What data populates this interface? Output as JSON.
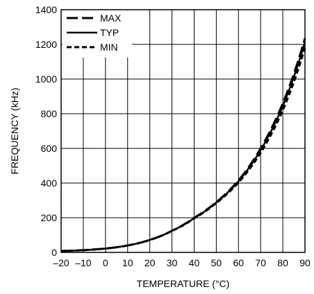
{
  "chart_data": {
    "type": "line",
    "title": "",
    "xlabel": "TEMPERATURE (°C)",
    "ylabel": "FREQUENCY (kHz)",
    "xlim": [
      -20,
      90
    ],
    "ylim": [
      0,
      1400
    ],
    "xticks": [
      -20,
      -10,
      0,
      10,
      20,
      30,
      40,
      50,
      60,
      70,
      80,
      90
    ],
    "yticks": [
      0,
      200,
      400,
      600,
      800,
      1000,
      1200,
      1400
    ],
    "xtick_labels": [
      "–20",
      "–10",
      "0",
      "10",
      "20",
      "30",
      "40",
      "50",
      "60",
      "70",
      "80",
      "90"
    ],
    "ytick_labels": [
      "0",
      "200",
      "400",
      "600",
      "800",
      "1000",
      "1200",
      "1400"
    ],
    "grid": true,
    "legend_position": "top-left",
    "series": [
      {
        "name": "MAX",
        "style": "long-dash",
        "x": [
          -20,
          -10,
          0,
          10,
          20,
          30,
          40,
          50,
          60,
          70,
          80,
          90
        ],
        "y": [
          8,
          13,
          22,
          40,
          72,
          125,
          200,
          290,
          415,
          600,
          860,
          1235
        ]
      },
      {
        "name": "TYP",
        "style": "solid",
        "x": [
          -20,
          -10,
          0,
          10,
          20,
          30,
          40,
          50,
          60,
          70,
          80,
          90
        ],
        "y": [
          8,
          13,
          22,
          40,
          72,
          125,
          198,
          288,
          410,
          590,
          845,
          1215
        ]
      },
      {
        "name": "MIN",
        "style": "short-dash",
        "x": [
          -20,
          -10,
          0,
          10,
          20,
          30,
          40,
          50,
          60,
          70,
          80,
          90
        ],
        "y": [
          8,
          13,
          22,
          40,
          72,
          124,
          196,
          285,
          403,
          575,
          820,
          1180
        ]
      }
    ]
  }
}
